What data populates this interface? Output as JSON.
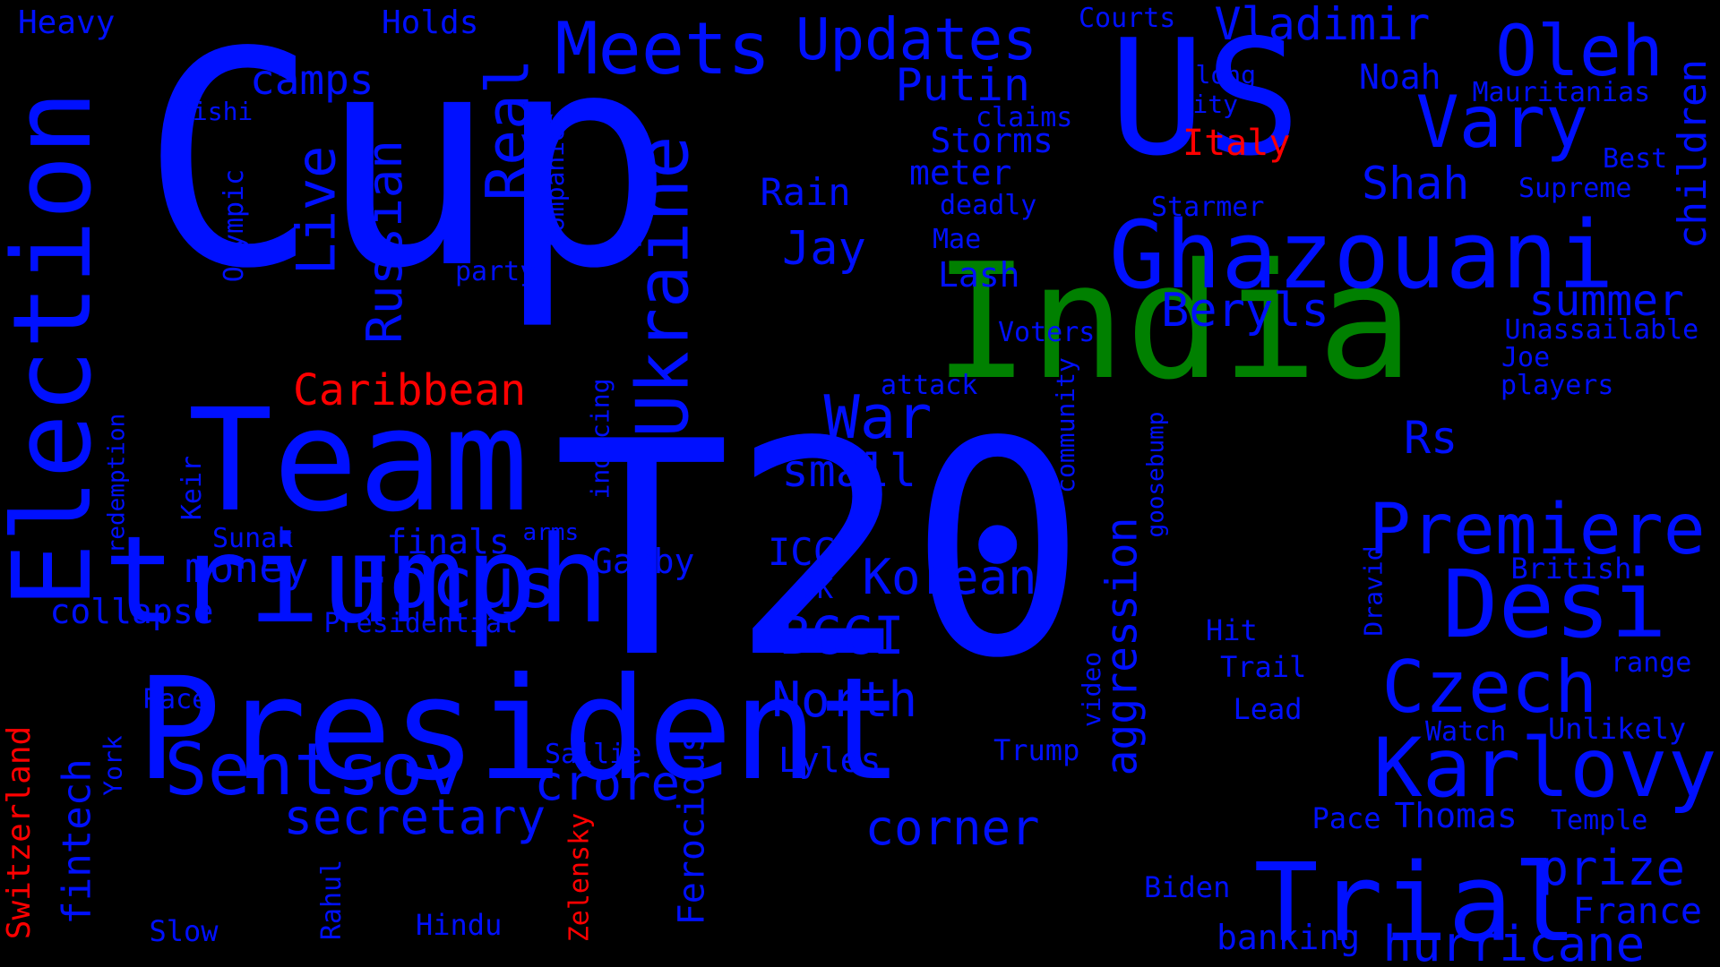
{
  "colors": {
    "background": "#000000",
    "primary": "#0010ff",
    "red": "#ff0000",
    "green": "#008000"
  },
  "words": [
    {
      "text": "Cup",
      "color": "primary"
    },
    {
      "text": "T20",
      "color": "primary"
    },
    {
      "text": "President",
      "color": "primary"
    },
    {
      "text": "India",
      "color": "green"
    },
    {
      "text": "US",
      "color": "primary"
    },
    {
      "text": "Team",
      "color": "primary"
    },
    {
      "text": "triumph",
      "color": "primary"
    },
    {
      "text": "Election",
      "color": "primary"
    },
    {
      "text": "Ghazouani",
      "color": "primary"
    },
    {
      "text": "Trial",
      "color": "primary"
    },
    {
      "text": "Desi",
      "color": "primary"
    },
    {
      "text": "Karlovy",
      "color": "primary"
    },
    {
      "text": "Ukraine",
      "color": "primary"
    },
    {
      "text": "Meets",
      "color": "primary"
    },
    {
      "text": "Vary",
      "color": "primary"
    },
    {
      "text": "Sentsov",
      "color": "primary"
    },
    {
      "text": "Focus",
      "color": "primary"
    },
    {
      "text": "Premiere",
      "color": "primary"
    },
    {
      "text": "Czech",
      "color": "primary"
    },
    {
      "text": "Oleh",
      "color": "primary"
    },
    {
      "text": "Updates",
      "color": "primary"
    },
    {
      "text": "Real",
      "color": "primary"
    },
    {
      "text": "Live",
      "color": "primary"
    },
    {
      "text": "hurricane",
      "color": "primary"
    },
    {
      "text": "Russian",
      "color": "primary"
    },
    {
      "text": "secretary",
      "color": "primary"
    },
    {
      "text": "crore",
      "color": "primary"
    },
    {
      "text": "BCCI",
      "color": "primary"
    },
    {
      "text": "War",
      "color": "primary"
    },
    {
      "text": "prize",
      "color": "primary"
    },
    {
      "text": "North",
      "color": "primary"
    },
    {
      "text": "Korean",
      "color": "primary"
    },
    {
      "text": "corner",
      "color": "primary"
    },
    {
      "text": "Vladimir",
      "color": "primary"
    },
    {
      "text": "Putin",
      "color": "primary"
    },
    {
      "text": "Caribbean",
      "color": "red"
    },
    {
      "text": "aggression",
      "color": "primary"
    },
    {
      "text": "Shah",
      "color": "primary"
    },
    {
      "text": "Beryls",
      "color": "primary"
    },
    {
      "text": "summer",
      "color": "primary"
    },
    {
      "text": "children",
      "color": "primary"
    },
    {
      "text": "camps",
      "color": "primary"
    },
    {
      "text": "Jay",
      "color": "primary"
    },
    {
      "text": "small",
      "color": "primary"
    },
    {
      "text": "money",
      "color": "primary"
    },
    {
      "text": "fintech",
      "color": "primary"
    },
    {
      "text": "collapse",
      "color": "primary"
    },
    {
      "text": "Storms",
      "color": "primary"
    },
    {
      "text": "Rs",
      "color": "primary"
    },
    {
      "text": "Lash",
      "color": "primary"
    },
    {
      "text": "meter",
      "color": "primary"
    },
    {
      "text": "Rain",
      "color": "primary"
    },
    {
      "text": "Italy",
      "color": "red"
    },
    {
      "text": "France",
      "color": "primary"
    },
    {
      "text": "banking",
      "color": "primary"
    },
    {
      "text": "Lyles",
      "color": "primary"
    },
    {
      "text": "Gabby",
      "color": "primary"
    },
    {
      "text": "ICC",
      "color": "primary"
    },
    {
      "text": "finals",
      "color": "primary"
    },
    {
      "text": "Ferocious",
      "color": "primary"
    },
    {
      "text": "Noah",
      "color": "primary"
    },
    {
      "text": "Switzerland",
      "color": "red"
    },
    {
      "text": "Zelensky",
      "color": "red"
    },
    {
      "text": "Heavy",
      "color": "primary"
    },
    {
      "text": "Holds",
      "color": "primary"
    },
    {
      "text": "Courts",
      "color": "primary"
    },
    {
      "text": "Mauritanias",
      "color": "primary"
    },
    {
      "text": "Best",
      "color": "primary"
    },
    {
      "text": "Supreme",
      "color": "primary"
    },
    {
      "text": "Unassailable",
      "color": "primary"
    },
    {
      "text": "Joe",
      "color": "primary"
    },
    {
      "text": "players",
      "color": "primary"
    },
    {
      "text": "Starmer",
      "color": "primary"
    },
    {
      "text": "deadly",
      "color": "primary"
    },
    {
      "text": "Mae",
      "color": "primary"
    },
    {
      "text": "claims",
      "color": "primary"
    },
    {
      "text": "long",
      "color": "primary"
    },
    {
      "text": "City",
      "color": "primary"
    },
    {
      "text": "Companies",
      "color": "primary"
    },
    {
      "text": "party",
      "color": "primary"
    },
    {
      "text": "Olympic",
      "color": "primary"
    },
    {
      "text": "Rishi",
      "color": "primary"
    },
    {
      "text": "Voters",
      "color": "primary"
    },
    {
      "text": "attack",
      "color": "primary"
    },
    {
      "text": "community",
      "color": "primary"
    },
    {
      "text": "goosebump",
      "color": "primary"
    },
    {
      "text": "inducing",
      "color": "primary"
    },
    {
      "text": "redemption",
      "color": "primary"
    },
    {
      "text": "Keir",
      "color": "primary"
    },
    {
      "text": "Sunak",
      "color": "primary"
    },
    {
      "text": "arms",
      "color": "primary"
    },
    {
      "text": "Presidential",
      "color": "primary"
    },
    {
      "text": "UK",
      "color": "primary"
    },
    {
      "text": "Race",
      "color": "primary"
    },
    {
      "text": "Sallie",
      "color": "primary"
    },
    {
      "text": "York",
      "color": "primary"
    },
    {
      "text": "Rahul",
      "color": "primary"
    },
    {
      "text": "Slow",
      "color": "primary"
    },
    {
      "text": "Hindu",
      "color": "primary"
    },
    {
      "text": "video",
      "color": "primary"
    },
    {
      "text": "Trump",
      "color": "primary"
    },
    {
      "text": "Biden",
      "color": "primary"
    },
    {
      "text": "Hit",
      "color": "primary"
    },
    {
      "text": "Dravid",
      "color": "primary"
    },
    {
      "text": "Trail",
      "color": "primary"
    },
    {
      "text": "Lead",
      "color": "primary"
    },
    {
      "text": "Watch",
      "color": "primary"
    },
    {
      "text": "Pace",
      "color": "primary"
    },
    {
      "text": "Thomas",
      "color": "primary"
    },
    {
      "text": "Temple",
      "color": "primary"
    },
    {
      "text": "Unlikely",
      "color": "primary"
    },
    {
      "text": "range",
      "color": "primary"
    },
    {
      "text": "British",
      "color": "primary"
    }
  ]
}
